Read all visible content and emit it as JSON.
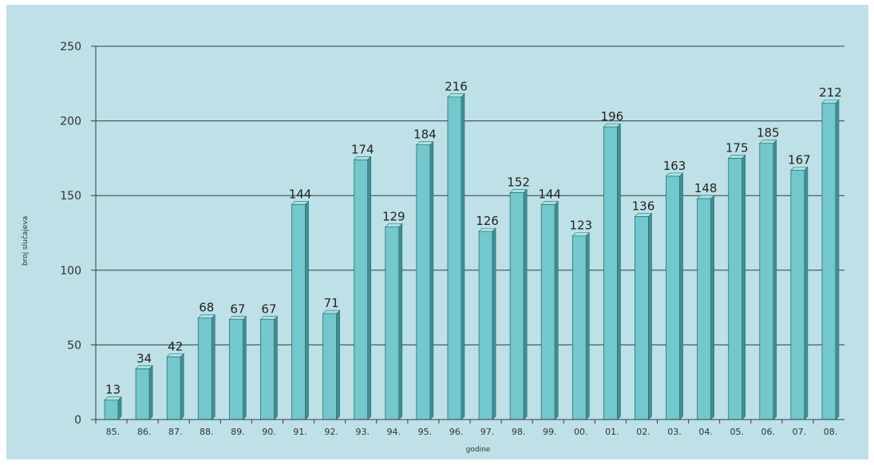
{
  "chart_data": {
    "type": "bar",
    "title": "",
    "xlabel": "godine",
    "ylabel": "broj slučajeva",
    "ylim": [
      0,
      250
    ],
    "yticks": [
      0,
      50,
      100,
      150,
      200,
      250
    ],
    "grid": true,
    "style": "3d",
    "colors": {
      "bar_front": "#72c8cc",
      "bar_side": "#3e8f93",
      "bar_top": "#a6e2e5",
      "background": "#bde1e6",
      "gridline": "#2e3e44"
    },
    "categories": [
      "85.",
      "86.",
      "87.",
      "88.",
      "89.",
      "90.",
      "91.",
      "92.",
      "93.",
      "94.",
      "95.",
      "96.",
      "97.",
      "98.",
      "99.",
      "00.",
      "01.",
      "02.",
      "03.",
      "04.",
      "05.",
      "06.",
      "07.",
      "08."
    ],
    "values": [
      13,
      34,
      42,
      68,
      67,
      67,
      144,
      71,
      174,
      129,
      184,
      216,
      126,
      152,
      144,
      123,
      196,
      136,
      163,
      148,
      175,
      185,
      167,
      212
    ]
  }
}
